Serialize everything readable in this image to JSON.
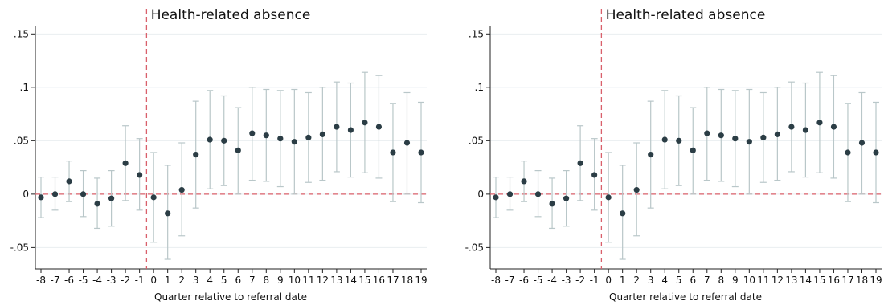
{
  "chart_data": [
    {
      "type": "scatter",
      "title": "Health-related absence",
      "xlabel": "Quarter relative to referral date",
      "ylabel": "",
      "x_ticks": [
        "-8",
        "-7",
        "-6",
        "-5",
        "-4",
        "-3",
        "-2",
        "-1",
        "0",
        "1",
        "2",
        "3",
        "4",
        "5",
        "6",
        "7",
        "8",
        "9",
        "10",
        "11",
        "12",
        "13",
        "14",
        "15",
        "16",
        "17",
        "18",
        "19"
      ],
      "y_ticks": [
        ".15",
        ".1",
        ".05",
        "0",
        "-.05"
      ],
      "y_tick_values": [
        0.15,
        0.1,
        0.05,
        0,
        -0.05
      ],
      "ylim": [
        -0.07,
        0.157
      ],
      "xlim": [
        -8,
        19
      ],
      "reference_lines": {
        "x": -0.5,
        "y": 0
      },
      "grid": true,
      "colors": {
        "point": "#2b3d45",
        "ci": "#b9c7c9",
        "reference": "#d9606b",
        "grid": "#e9eef0",
        "axis": "#222222"
      },
      "series": [
        {
          "x": [
            -8,
            -7,
            -6,
            -5,
            -4,
            -3,
            -2,
            -1,
            0,
            1,
            2,
            3,
            4,
            5,
            6,
            7,
            8,
            9,
            10,
            11,
            12,
            13,
            14,
            15,
            16,
            17,
            18,
            19
          ],
          "values": [
            -0.003,
            0.0,
            0.012,
            0.0,
            -0.009,
            -0.004,
            0.029,
            0.018,
            -0.003,
            -0.018,
            0.004,
            0.037,
            0.051,
            0.05,
            0.041,
            0.057,
            0.055,
            0.052,
            0.049,
            0.053,
            0.056,
            0.063,
            0.06,
            0.067,
            0.063,
            0.039,
            0.048,
            0.039
          ],
          "ci_low": [
            -0.022,
            -0.015,
            -0.007,
            -0.021,
            -0.032,
            -0.03,
            -0.006,
            -0.015,
            -0.045,
            -0.061,
            -0.039,
            -0.013,
            0.005,
            0.008,
            0.0,
            0.013,
            0.012,
            0.007,
            0.0,
            0.011,
            0.013,
            0.021,
            0.016,
            0.02,
            0.015,
            -0.007,
            0.0,
            -0.008
          ],
          "ci_high": [
            0.016,
            0.016,
            0.031,
            0.022,
            0.015,
            0.022,
            0.064,
            0.052,
            0.039,
            0.027,
            0.048,
            0.087,
            0.097,
            0.092,
            0.081,
            0.1,
            0.098,
            0.097,
            0.098,
            0.095,
            0.1,
            0.105,
            0.104,
            0.114,
            0.111,
            0.085,
            0.095,
            0.086
          ]
        }
      ]
    },
    {
      "type": "scatter",
      "title": "Health-related absence",
      "xlabel": "Quarter relative to referral date",
      "ylabel": "",
      "x_ticks": [
        "-8",
        "-7",
        "-6",
        "-5",
        "-4",
        "-3",
        "-2",
        "-1",
        "0",
        "1",
        "2",
        "3",
        "4",
        "5",
        "6",
        "7",
        "8",
        "9",
        "10",
        "11",
        "12",
        "13",
        "14",
        "15",
        "16",
        "17",
        "18",
        "19"
      ],
      "y_ticks": [
        ".15",
        ".1",
        ".05",
        "0",
        "-.05"
      ],
      "y_tick_values": [
        0.15,
        0.1,
        0.05,
        0,
        -0.05
      ],
      "ylim": [
        -0.07,
        0.157
      ],
      "xlim": [
        -8,
        19
      ],
      "reference_lines": {
        "x": -0.5,
        "y": 0
      },
      "grid": true,
      "colors": {
        "point": "#2b3d45",
        "ci": "#b9c7c9",
        "reference": "#d9606b",
        "grid": "#e9eef0",
        "axis": "#222222"
      },
      "series": [
        {
          "x": [
            -8,
            -7,
            -6,
            -5,
            -4,
            -3,
            -2,
            -1,
            0,
            1,
            2,
            3,
            4,
            5,
            6,
            7,
            8,
            9,
            10,
            11,
            12,
            13,
            14,
            15,
            16,
            17,
            18,
            19
          ],
          "values": [
            -0.003,
            0.0,
            0.012,
            0.0,
            -0.009,
            -0.004,
            0.029,
            0.018,
            -0.003,
            -0.018,
            0.004,
            0.037,
            0.051,
            0.05,
            0.041,
            0.057,
            0.055,
            0.052,
            0.049,
            0.053,
            0.056,
            0.063,
            0.06,
            0.067,
            0.063,
            0.039,
            0.048,
            0.039
          ],
          "ci_low": [
            -0.022,
            -0.015,
            -0.007,
            -0.021,
            -0.032,
            -0.03,
            -0.006,
            -0.015,
            -0.045,
            -0.061,
            -0.039,
            -0.013,
            0.005,
            0.008,
            0.0,
            0.013,
            0.012,
            0.007,
            0.0,
            0.011,
            0.013,
            0.021,
            0.016,
            0.02,
            0.015,
            -0.007,
            0.0,
            -0.008
          ],
          "ci_high": [
            0.016,
            0.016,
            0.031,
            0.022,
            0.015,
            0.022,
            0.064,
            0.052,
            0.039,
            0.027,
            0.048,
            0.087,
            0.097,
            0.092,
            0.081,
            0.1,
            0.098,
            0.097,
            0.098,
            0.095,
            0.1,
            0.105,
            0.104,
            0.114,
            0.111,
            0.085,
            0.095,
            0.086
          ]
        }
      ]
    }
  ]
}
